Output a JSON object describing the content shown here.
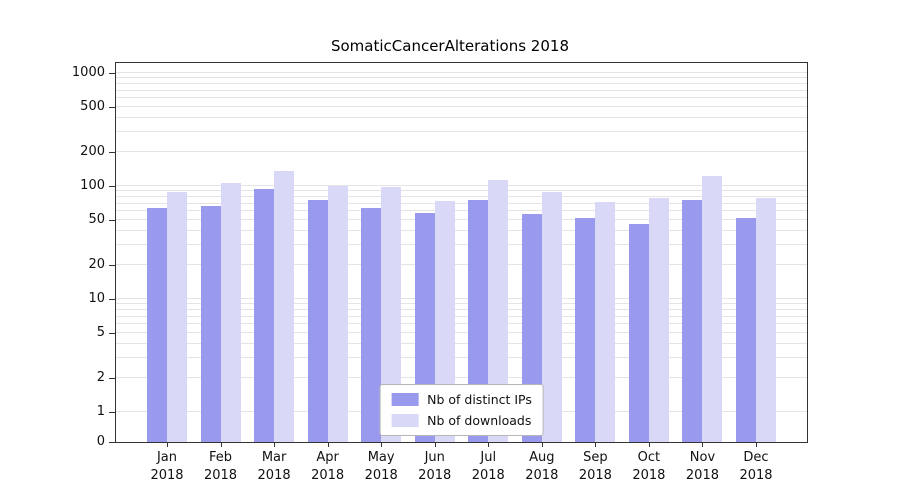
{
  "chart_data": {
    "type": "bar",
    "title": "SomaticCancerAlterations 2018",
    "categories": [
      "Jan",
      "Feb",
      "Mar",
      "Apr",
      "May",
      "Jun",
      "Jul",
      "Aug",
      "Sep",
      "Oct",
      "Nov",
      "Dec"
    ],
    "category_year": "2018",
    "series": [
      {
        "name": "Nb of distinct IPs",
        "color": "#9999ee",
        "values": [
          64,
          67,
          95,
          75,
          64,
          58,
          75,
          56,
          52,
          46,
          75,
          52
        ]
      },
      {
        "name": "Nb of downloads",
        "color": "#d9d9f7",
        "values": [
          88,
          106,
          135,
          100,
          99,
          74,
          112,
          88,
          72,
          79,
          122,
          78
        ]
      }
    ],
    "yscale": "log",
    "y_ticks": [
      0,
      1,
      2,
      5,
      10,
      20,
      50,
      100,
      200,
      500,
      1000
    ],
    "ylim": [
      0,
      1250
    ],
    "grid": true,
    "legend_position": "lower center inside",
    "axis_color": "#333333",
    "grid_color": "#e4e4e4"
  }
}
